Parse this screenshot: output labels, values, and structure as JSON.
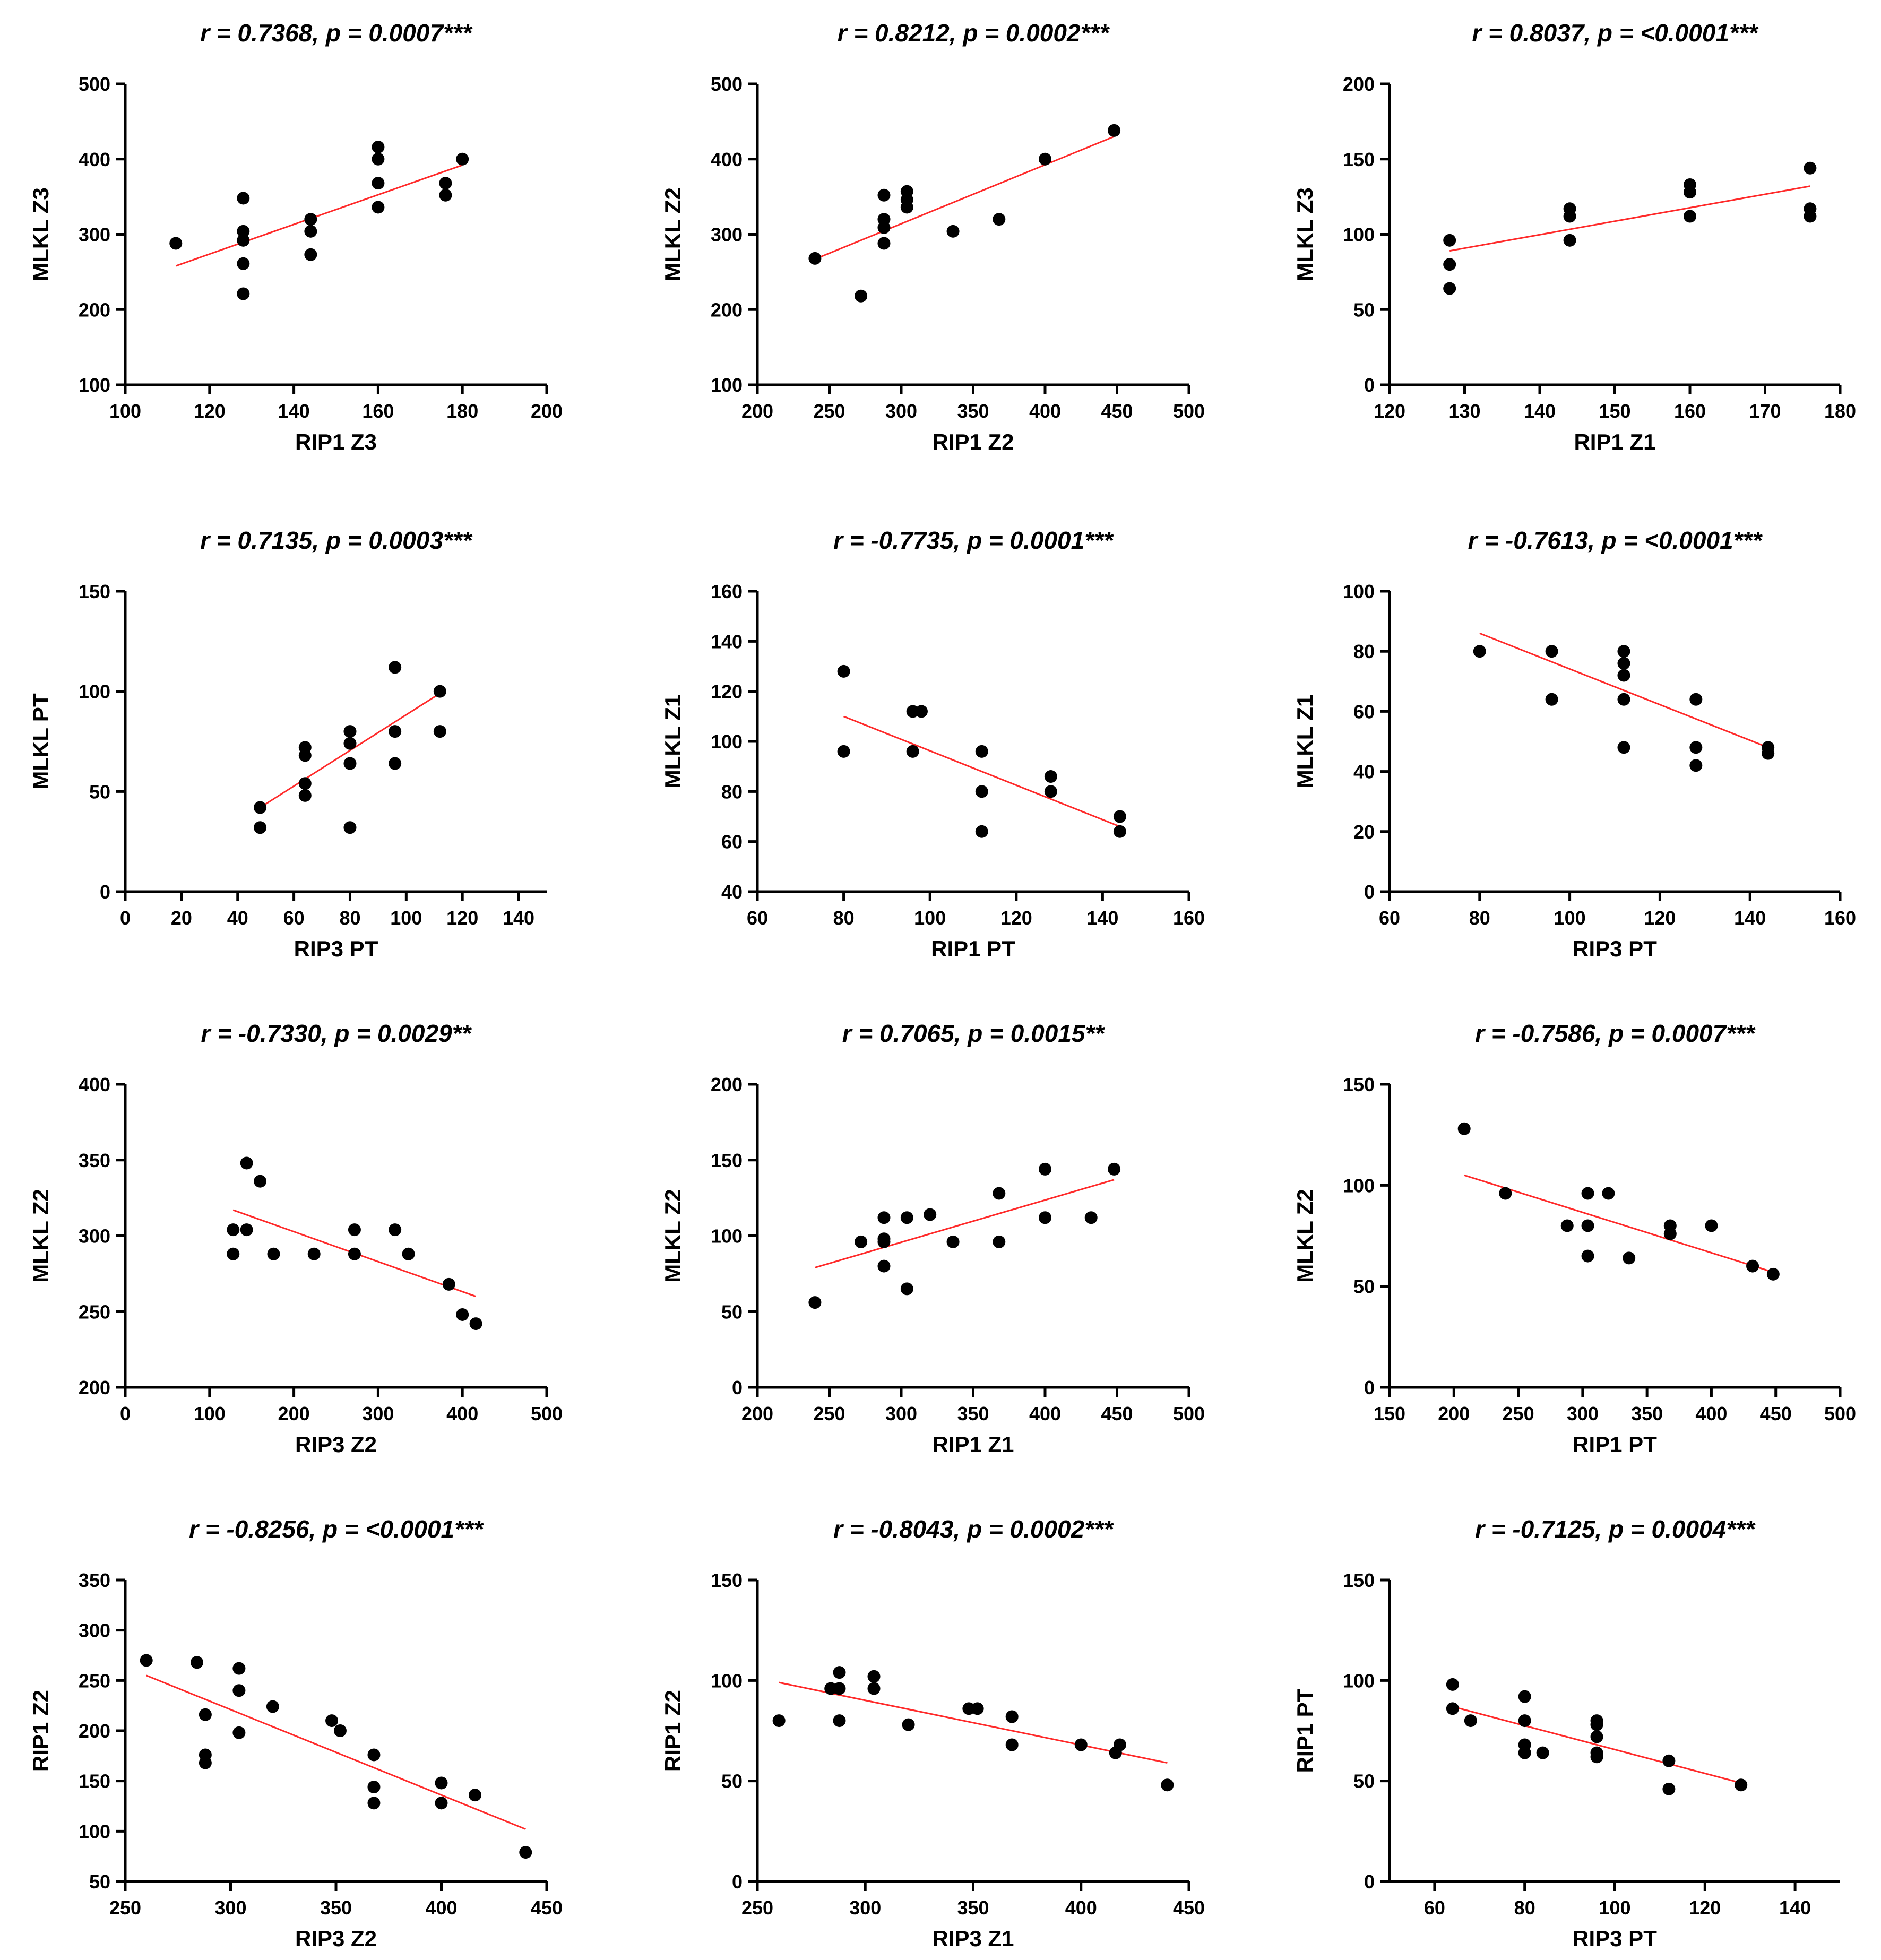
{
  "chart_data": [
    {
      "type": "scatter",
      "title": {
        "r": "-",
        "rv": "0.7368",
        "p": "0.0007***"
      },
      "title_text": "r = 0.7368, p = 0.0007***",
      "xlabel": "RIP1 Z3",
      "ylabel": "MLKL Z3",
      "xlim": [
        100,
        200
      ],
      "xticks": [
        100,
        120,
        140,
        160,
        180,
        200
      ],
      "ylim": [
        100,
        500
      ],
      "yticks": [
        100,
        200,
        300,
        400,
        500
      ],
      "points": [
        [
          112,
          288
        ],
        [
          128,
          348
        ],
        [
          128,
          304
        ],
        [
          128,
          292
        ],
        [
          128,
          261
        ],
        [
          128,
          221
        ],
        [
          144,
          320
        ],
        [
          144,
          304
        ],
        [
          144,
          273
        ],
        [
          160,
          416
        ],
        [
          160,
          400
        ],
        [
          160,
          368
        ],
        [
          160,
          336
        ],
        [
          176,
          368
        ],
        [
          176,
          352
        ],
        [
          180,
          400
        ]
      ],
      "fit": [
        [
          112,
          258
        ],
        [
          180,
          392
        ]
      ]
    },
    {
      "type": "scatter",
      "title_text": "r = 0.8212, p = 0.0002***",
      "xlabel": "RIP1 Z2",
      "ylabel": "MLKL Z2",
      "xlim": [
        200,
        500
      ],
      "xticks": [
        200,
        250,
        300,
        350,
        400,
        450,
        500
      ],
      "ylim": [
        100,
        500
      ],
      "yticks": [
        100,
        200,
        300,
        400,
        500
      ],
      "points": [
        [
          240,
          268
        ],
        [
          272,
          218
        ],
        [
          288,
          352
        ],
        [
          288,
          320
        ],
        [
          288,
          309
        ],
        [
          288,
          288
        ],
        [
          304,
          357
        ],
        [
          304,
          346
        ],
        [
          304,
          336
        ],
        [
          336,
          304
        ],
        [
          368,
          320
        ],
        [
          400,
          400
        ],
        [
          448,
          438
        ]
      ],
      "fit": [
        [
          240,
          267
        ],
        [
          448,
          430
        ]
      ]
    },
    {
      "type": "scatter",
      "title_text": "r = 0.8037, p = <0.0001***",
      "xlabel": "RIP1 Z1",
      "ylabel": "MLKL Z3",
      "xlim": [
        120,
        180
      ],
      "xticks": [
        120,
        130,
        140,
        150,
        160,
        170,
        180
      ],
      "ylim": [
        0,
        200
      ],
      "yticks": [
        0,
        50,
        100,
        150,
        200
      ],
      "points": [
        [
          128,
          96
        ],
        [
          128,
          80
        ],
        [
          128,
          64
        ],
        [
          144,
          117
        ],
        [
          144,
          112
        ],
        [
          144,
          96
        ],
        [
          160,
          133
        ],
        [
          160,
          128
        ],
        [
          160,
          112
        ],
        [
          176,
          144
        ],
        [
          176,
          117
        ],
        [
          176,
          112
        ]
      ],
      "fit": [
        [
          128,
          89
        ],
        [
          176,
          132
        ]
      ]
    },
    {
      "type": "scatter",
      "title_text": "r = 0.7135, p = 0.0003***",
      "xlabel": "RIP3 PT",
      "ylabel": "MLKL PT",
      "xlim": [
        0,
        150
      ],
      "xticks": [
        0,
        20,
        40,
        60,
        80,
        100,
        120,
        140
      ],
      "ylim": [
        0,
        150
      ],
      "yticks": [
        0,
        50,
        100,
        150
      ],
      "points": [
        [
          48,
          42
        ],
        [
          48,
          32
        ],
        [
          64,
          72
        ],
        [
          64,
          68
        ],
        [
          64,
          54
        ],
        [
          64,
          48
        ],
        [
          80,
          80
        ],
        [
          80,
          74
        ],
        [
          80,
          64
        ],
        [
          80,
          32
        ],
        [
          96,
          112
        ],
        [
          96,
          80
        ],
        [
          96,
          64
        ],
        [
          112,
          100
        ],
        [
          112,
          80
        ]
      ],
      "fit": [
        [
          48,
          42
        ],
        [
          112,
          99
        ]
      ]
    },
    {
      "type": "scatter",
      "title_text": "r = -0.7735, p = 0.0001***",
      "xlabel": "RIP1 PT",
      "ylabel": "MLKL Z1",
      "xlim": [
        60,
        160
      ],
      "xticks": [
        60,
        80,
        100,
        120,
        140,
        160
      ],
      "ylim": [
        40,
        160
      ],
      "yticks": [
        40,
        60,
        80,
        100,
        120,
        140,
        160
      ],
      "points": [
        [
          80,
          128
        ],
        [
          80,
          96
        ],
        [
          96,
          112
        ],
        [
          96,
          96
        ],
        [
          98,
          112
        ],
        [
          112,
          96
        ],
        [
          112,
          80
        ],
        [
          112,
          64
        ],
        [
          128,
          86
        ],
        [
          128,
          80
        ],
        [
          144,
          70
        ],
        [
          144,
          64
        ]
      ],
      "fit": [
        [
          80,
          110
        ],
        [
          144,
          66
        ]
      ]
    },
    {
      "type": "scatter",
      "title_text": "r = -0.7613, p = <0.0001***",
      "xlabel": "RIP3 PT",
      "ylabel": "MLKL Z1",
      "xlim": [
        60,
        160
      ],
      "xticks": [
        60,
        80,
        100,
        120,
        140,
        160
      ],
      "ylim": [
        0,
        100
      ],
      "yticks": [
        0,
        20,
        40,
        60,
        80,
        100
      ],
      "points": [
        [
          80,
          80
        ],
        [
          96,
          80
        ],
        [
          96,
          64
        ],
        [
          112,
          80
        ],
        [
          112,
          76
        ],
        [
          112,
          72
        ],
        [
          112,
          64
        ],
        [
          112,
          48
        ],
        [
          128,
          64
        ],
        [
          128,
          48
        ],
        [
          128,
          42
        ],
        [
          144,
          48
        ],
        [
          144,
          46
        ]
      ],
      "fit": [
        [
          80,
          86
        ],
        [
          144,
          48
        ]
      ]
    },
    {
      "type": "scatter",
      "title_text": "r = -0.7330, p = 0.0029**",
      "xlabel": "RIP3 Z2",
      "ylabel": "MLKL Z2",
      "xlim": [
        0,
        500
      ],
      "xticks": [
        0,
        100,
        200,
        300,
        400,
        500
      ],
      "ylim": [
        200,
        400
      ],
      "yticks": [
        200,
        250,
        300,
        350,
        400
      ],
      "points": [
        [
          128,
          304
        ],
        [
          128,
          288
        ],
        [
          144,
          348
        ],
        [
          144,
          304
        ],
        [
          160,
          336
        ],
        [
          176,
          288
        ],
        [
          224,
          288
        ],
        [
          272,
          304
        ],
        [
          272,
          288
        ],
        [
          320,
          304
        ],
        [
          336,
          288
        ],
        [
          384,
          268
        ],
        [
          400,
          248
        ],
        [
          416,
          242
        ]
      ],
      "fit": [
        [
          128,
          317
        ],
        [
          416,
          260
        ]
      ]
    },
    {
      "type": "scatter",
      "title_text": "r = 0.7065, p = 0.0015**",
      "xlabel": "RIP1 Z1",
      "ylabel": "MLKL Z2",
      "xlim": [
        200,
        500
      ],
      "xticks": [
        200,
        250,
        300,
        350,
        400,
        450,
        500
      ],
      "ylim": [
        0,
        200
      ],
      "yticks": [
        0,
        50,
        100,
        150,
        200
      ],
      "points": [
        [
          240,
          56
        ],
        [
          272,
          96
        ],
        [
          288,
          112
        ],
        [
          288,
          98
        ],
        [
          288,
          96
        ],
        [
          288,
          80
        ],
        [
          304,
          112
        ],
        [
          304,
          65
        ],
        [
          320,
          114
        ],
        [
          336,
          96
        ],
        [
          368,
          128
        ],
        [
          368,
          96
        ],
        [
          400,
          144
        ],
        [
          400,
          112
        ],
        [
          432,
          112
        ],
        [
          448,
          144
        ]
      ],
      "fit": [
        [
          240,
          79
        ],
        [
          448,
          137
        ]
      ]
    },
    {
      "type": "scatter",
      "title_text": "r = -0.7586, p = 0.0007***",
      "xlabel": "RIP1 PT",
      "ylabel": "MLKL Z2",
      "xlim": [
        150,
        500
      ],
      "xticks": [
        150,
        200,
        250,
        300,
        350,
        400,
        450,
        500
      ],
      "ylim": [
        0,
        150
      ],
      "yticks": [
        0,
        50,
        100,
        150
      ],
      "points": [
        [
          208,
          128
        ],
        [
          240,
          96
        ],
        [
          288,
          80
        ],
        [
          304,
          96
        ],
        [
          304,
          80
        ],
        [
          304,
          65
        ],
        [
          320,
          96
        ],
        [
          336,
          64
        ],
        [
          368,
          80
        ],
        [
          368,
          76
        ],
        [
          400,
          80
        ],
        [
          432,
          60
        ],
        [
          448,
          56
        ]
      ],
      "fit": [
        [
          208,
          105
        ],
        [
          448,
          57
        ]
      ]
    },
    {
      "type": "scatter",
      "title_text": "r = -0.8256, p = <0.0001***",
      "xlabel": "RIP3 Z2",
      "ylabel": "RIP1 Z2",
      "xlim": [
        250,
        450
      ],
      "xticks": [
        250,
        300,
        350,
        400,
        450
      ],
      "ylim": [
        50,
        350
      ],
      "yticks": [
        50,
        100,
        150,
        200,
        250,
        300,
        350
      ],
      "points": [
        [
          260,
          270
        ],
        [
          284,
          268
        ],
        [
          288,
          216
        ],
        [
          288,
          176
        ],
        [
          288,
          168
        ],
        [
          304,
          262
        ],
        [
          304,
          240
        ],
        [
          304,
          198
        ],
        [
          320,
          224
        ],
        [
          348,
          210
        ],
        [
          352,
          200
        ],
        [
          368,
          176
        ],
        [
          368,
          144
        ],
        [
          368,
          128
        ],
        [
          400,
          148
        ],
        [
          400,
          128
        ],
        [
          416,
          136
        ],
        [
          440,
          79
        ]
      ],
      "fit": [
        [
          260,
          255
        ],
        [
          440,
          102
        ]
      ]
    },
    {
      "type": "scatter",
      "title_text": "r = -0.8043, p = 0.0002***",
      "xlabel": "RIP3 Z1",
      "ylabel": "RIP1 Z2",
      "xlim": [
        250,
        450
      ],
      "xticks": [
        250,
        300,
        350,
        400,
        450
      ],
      "ylim": [
        0,
        150
      ],
      "yticks": [
        0,
        50,
        100,
        150
      ],
      "points": [
        [
          260,
          80
        ],
        [
          284,
          96
        ],
        [
          288,
          104
        ],
        [
          288,
          96
        ],
        [
          288,
          80
        ],
        [
          304,
          102
        ],
        [
          304,
          96
        ],
        [
          320,
          78
        ],
        [
          348,
          86
        ],
        [
          352,
          86
        ],
        [
          368,
          82
        ],
        [
          368,
          68
        ],
        [
          400,
          68
        ],
        [
          416,
          64
        ],
        [
          418,
          68
        ],
        [
          440,
          48
        ]
      ],
      "fit": [
        [
          260,
          99
        ],
        [
          440,
          59
        ]
      ]
    },
    {
      "type": "scatter",
      "title_text": "r = -0.7125, p = 0.0004***",
      "xlabel": "RIP3 PT",
      "ylabel": "RIP1 PT",
      "xlim": [
        50,
        150
      ],
      "xticks": [
        60,
        80,
        100,
        120,
        140
      ],
      "ylim": [
        0,
        150
      ],
      "yticks": [
        0,
        50,
        100,
        150
      ],
      "points": [
        [
          64,
          98
        ],
        [
          64,
          86
        ],
        [
          68,
          80
        ],
        [
          80,
          92
        ],
        [
          80,
          80
        ],
        [
          80,
          68
        ],
        [
          80,
          64
        ],
        [
          84,
          64
        ],
        [
          96,
          80
        ],
        [
          96,
          78
        ],
        [
          96,
          72
        ],
        [
          96,
          64
        ],
        [
          96,
          62
        ],
        [
          112,
          60
        ],
        [
          112,
          46
        ],
        [
          128,
          48
        ]
      ],
      "fit": [
        [
          64,
          87
        ],
        [
          128,
          49
        ]
      ]
    }
  ],
  "colors": {
    "points": "#000000",
    "fit": "#ff2a2a",
    "axes": "#000000"
  }
}
